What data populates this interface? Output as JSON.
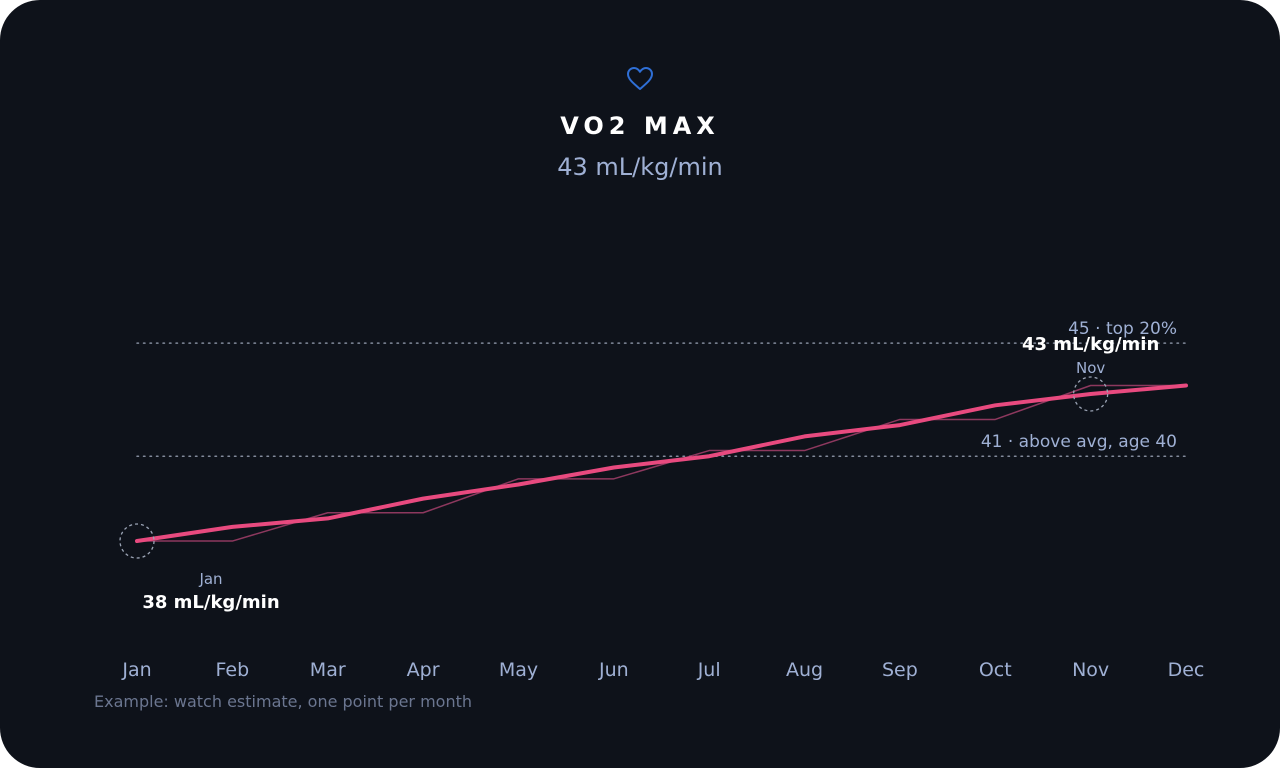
{
  "header": {
    "icon": "heart-icon",
    "title": "VO2 MAX",
    "current_value": "43 mL/kg/min"
  },
  "caption": "Example: watch estimate, one point per month",
  "colors": {
    "background": "#0e121a",
    "accent": "#e84a7f",
    "heart": "#2f6fd6",
    "label": "#9fb0d4"
  },
  "chart_data": {
    "type": "line",
    "x": [
      "Jan",
      "Feb",
      "Mar",
      "Apr",
      "May",
      "Jun",
      "Jul",
      "Aug",
      "Sep",
      "Oct",
      "Nov",
      "Dec"
    ],
    "ylim": [
      34.5,
      49
    ],
    "series": [
      {
        "role": "trend",
        "values": [
          38,
          38.5,
          38.8,
          39.5,
          40,
          40.6,
          41,
          41.7,
          42.1,
          42.8,
          43.2,
          43.5
        ]
      },
      {
        "role": "raw",
        "values": [
          38,
          38,
          39,
          39,
          40.2,
          40.2,
          41.2,
          41.2,
          42.3,
          42.3,
          43.5,
          43.5
        ]
      }
    ],
    "reference_lines": [
      {
        "value": 45,
        "label": "45 · top 20%"
      },
      {
        "value": 41,
        "label": "41 · above avg, age 40"
      }
    ],
    "annotations": [
      {
        "month": "Jan",
        "value": 38,
        "month_label": "Jan",
        "value_label": "38 mL/kg/min"
      },
      {
        "month": "Nov",
        "value": 43.2,
        "month_label": "Nov",
        "value_label": "43 mL/kg/min"
      }
    ]
  }
}
